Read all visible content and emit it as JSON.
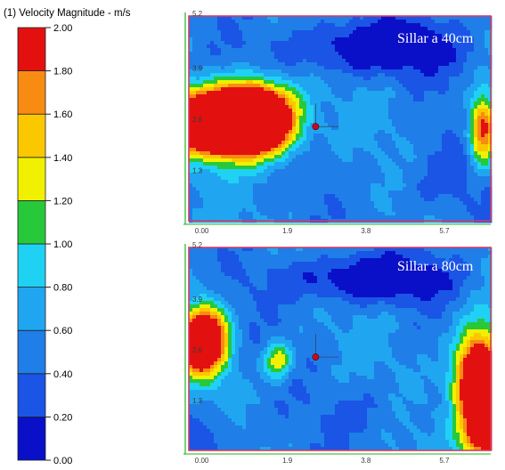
{
  "chart_data": {
    "type": "heatmap",
    "legend": {
      "title": "(1) Velocity Magnitude - m/s",
      "ticks": [
        "0.00",
        "0.20",
        "0.40",
        "0.60",
        "0.80",
        "1.00",
        "1.20",
        "1.40",
        "1.60",
        "1.80",
        "2.00"
      ],
      "levels": [
        0.0,
        0.2,
        0.4,
        0.6,
        0.8,
        1.0,
        1.2,
        1.4,
        1.6,
        1.8,
        2.0
      ],
      "colors": [
        "#0a10c8",
        "#1a55e6",
        "#1f7ee8",
        "#20a6f0",
        "#1fd2f3",
        "#27c93a",
        "#f0f000",
        "#fbc800",
        "#f88b12",
        "#e31010"
      ]
    },
    "panels": [
      {
        "title": "Sillar a 40cm",
        "y_ticks": [
          "5.2",
          "3.9",
          "2.6",
          "1.3"
        ],
        "x_ticks": [
          "0.00",
          "1.9",
          "3.8",
          "5.7"
        ],
        "blobs": [
          {
            "x": 0.8,
            "y": 2.5,
            "v": 3.2,
            "s": 1.25,
            "t": 0.75
          },
          {
            "x": 1.8,
            "y": 2.6,
            "v": 2.5,
            "s": 0.9,
            "t": 0.8
          },
          {
            "x": 7.6,
            "y": 2.3,
            "v": 1.5,
            "s": 0.35,
            "t": 0.9
          },
          {
            "x": 4.8,
            "y": 4.4,
            "v": -0.7,
            "s": 2.0,
            "t": 0.7
          },
          {
            "x": 6.6,
            "y": 1.0,
            "v": -0.25,
            "s": 1.3,
            "t": 1.0
          }
        ]
      },
      {
        "title": "Sillar a 80cm",
        "y_ticks": [
          "5.2",
          "3.9",
          "2.6",
          "1.3"
        ],
        "x_ticks": [
          "0.00",
          "1.9",
          "3.8",
          "5.7"
        ],
        "blobs": [
          {
            "x": 0.4,
            "y": 2.8,
            "v": 2.6,
            "s": 0.55,
            "t": 0.8
          },
          {
            "x": 7.5,
            "y": 1.7,
            "v": 2.6,
            "s": 0.6,
            "t": 1.3
          },
          {
            "x": 7.7,
            "y": 0.3,
            "v": 1.5,
            "s": 0.5,
            "t": 0.4
          },
          {
            "x": 2.3,
            "y": 2.3,
            "v": 0.9,
            "s": 0.35,
            "t": 0.45
          },
          {
            "x": 4.6,
            "y": 4.4,
            "v": -0.7,
            "s": 2.0,
            "t": 0.6
          },
          {
            "x": 0.4,
            "y": 0.3,
            "v": -0.35,
            "s": 0.9,
            "t": 0.7
          },
          {
            "x": 4.7,
            "y": 1.0,
            "v": -0.2,
            "s": 1.1,
            "t": 0.7
          }
        ]
      }
    ]
  }
}
